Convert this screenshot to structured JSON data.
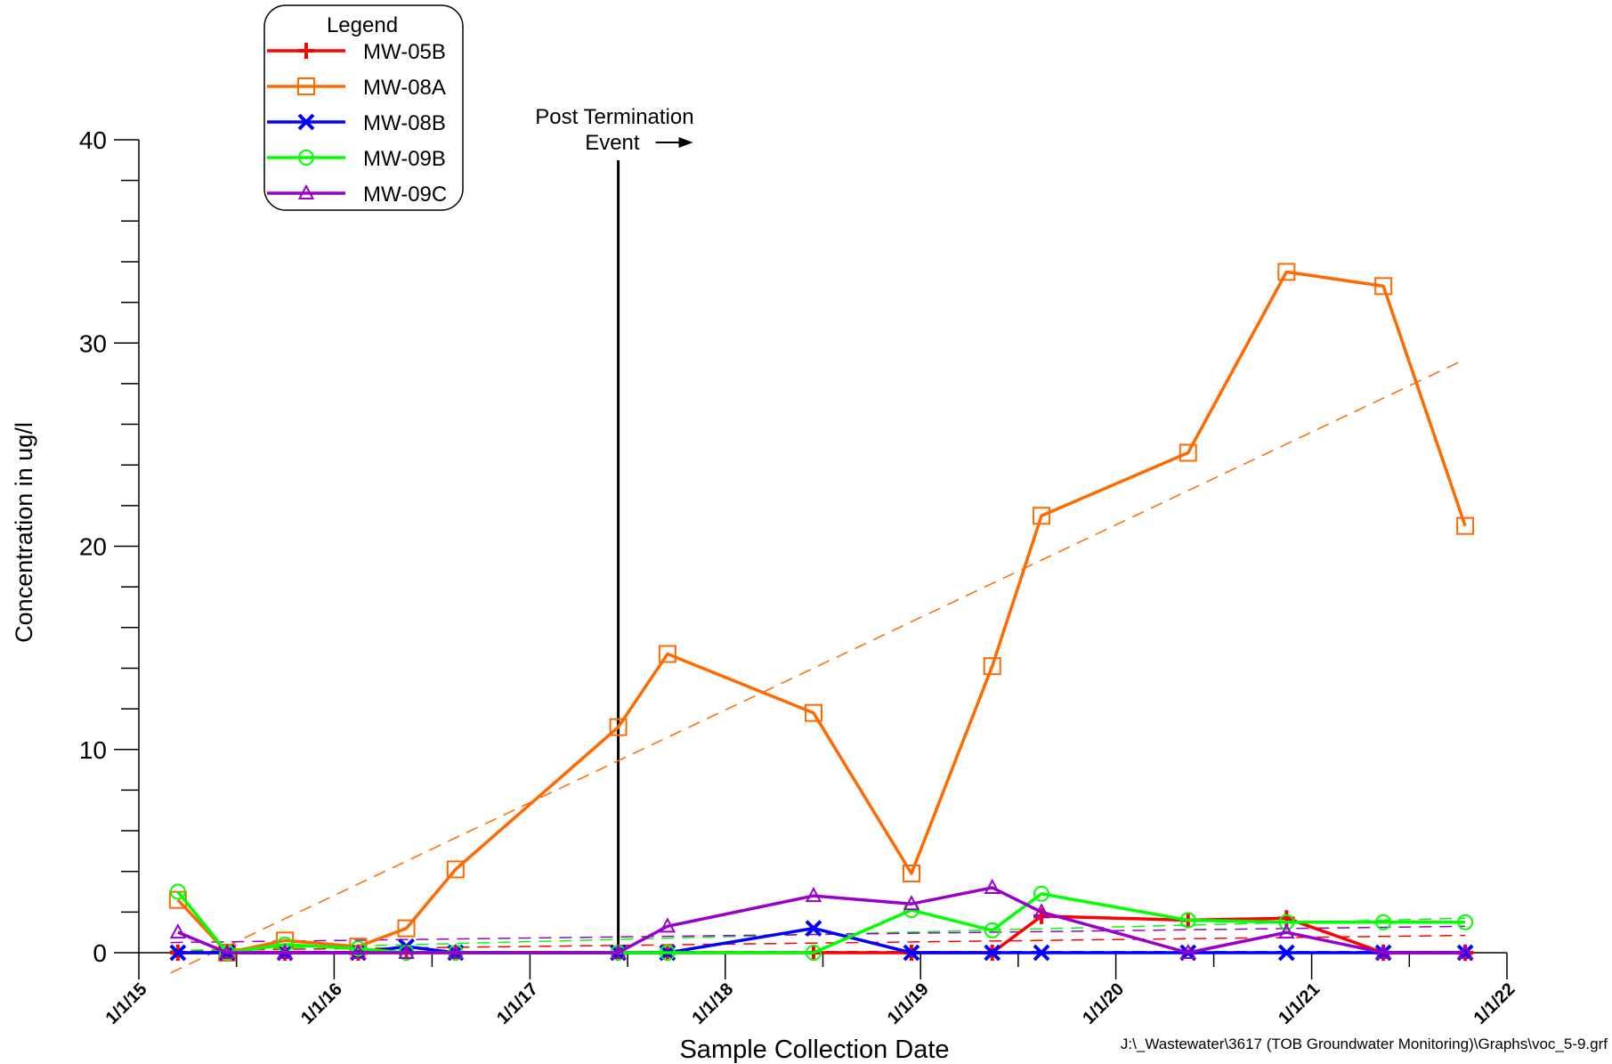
{
  "chart_data": {
    "type": "line",
    "title": "",
    "xlabel": "Sample Collection Date",
    "ylabel": "Concentration in ug/l",
    "x_axis_type": "date",
    "xlim": [
      "2015-01-01",
      "2022-01-01"
    ],
    "ylim": [
      0,
      40
    ],
    "x_ticks": [
      "1/1/15",
      "1/1/16",
      "1/1/17",
      "1/1/18",
      "1/1/19",
      "1/1/20",
      "1/1/21",
      "1/1/22"
    ],
    "y_ticks": [
      "0",
      "10",
      "20",
      "30",
      "40"
    ],
    "grid": false,
    "legend_title": "Legend",
    "legend_position": "top-left",
    "annotation": {
      "line1": "Post Termination",
      "line2": "Event",
      "date": "2017-06-15"
    },
    "footer": "J:\\_Wastewater\\3617 (TOB Groundwater Monitoring)\\Graphs\\voc_5-9.grf",
    "series": [
      {
        "name": "MW-05B",
        "color": "#ff0000",
        "marker": "plus",
        "x": [
          "2015-03-15",
          "2015-06-15",
          "2015-10-01",
          "2016-02-15",
          "2016-05-15",
          "2016-08-15",
          "2017-06-15",
          "2017-09-15",
          "2018-06-15",
          "2018-12-15",
          "2019-05-15",
          "2019-08-15",
          "2020-05-15",
          "2020-11-15",
          "2021-05-15",
          "2021-10-15"
        ],
        "y": [
          0,
          0,
          0,
          0,
          0,
          0,
          0,
          0,
          0,
          0,
          0,
          1.8,
          1.6,
          1.7,
          0,
          0
        ],
        "trend": [
          0.1,
          0.85
        ]
      },
      {
        "name": "MW-08A",
        "color": "#ff6a00",
        "marker": "square",
        "x": [
          "2015-03-15",
          "2015-06-15",
          "2015-10-01",
          "2016-02-15",
          "2016-05-15",
          "2016-08-15",
          "2017-06-15",
          "2017-09-15",
          "2018-06-15",
          "2018-12-15",
          "2019-05-15",
          "2019-08-15",
          "2020-05-15",
          "2020-11-15",
          "2021-05-15",
          "2021-10-15"
        ],
        "y": [
          2.6,
          0,
          0.6,
          0.3,
          1.2,
          4.1,
          11.1,
          14.7,
          11.8,
          3.9,
          14.1,
          21.5,
          24.6,
          33.5,
          32.8,
          21.0
        ],
        "trend": [
          -1.0,
          29.2
        ]
      },
      {
        "name": "MW-08B",
        "color": "#0000ff",
        "marker": "x",
        "x": [
          "2015-03-15",
          "2015-06-15",
          "2015-10-01",
          "2016-02-15",
          "2016-05-15",
          "2016-08-15",
          "2017-06-15",
          "2017-09-15",
          "2018-06-15",
          "2018-12-15",
          "2019-05-15",
          "2019-08-15",
          "2020-05-15",
          "2020-11-15",
          "2021-05-15",
          "2021-10-15"
        ],
        "y": [
          0,
          0,
          0,
          0,
          0.3,
          0,
          0,
          0,
          1.2,
          0,
          0,
          0,
          0,
          0,
          0,
          0
        ],
        "trend": [
          0.05,
          0.05
        ]
      },
      {
        "name": "MW-09B",
        "color": "#00ff00",
        "marker": "circle",
        "x": [
          "2015-03-15",
          "2015-06-15",
          "2015-10-01",
          "2016-02-15",
          "2016-05-15",
          "2016-08-15",
          "2017-06-15",
          "2017-09-15",
          "2018-06-15",
          "2018-12-15",
          "2019-05-15",
          "2019-08-15",
          "2020-05-15",
          "2020-11-15",
          "2021-05-15",
          "2021-10-15"
        ],
        "y": [
          3.0,
          0,
          0.4,
          0.2,
          0,
          0,
          0,
          0,
          0,
          2.1,
          1.1,
          2.9,
          1.6,
          1.5,
          1.5,
          1.5
        ],
        "trend": [
          0.1,
          1.7
        ]
      },
      {
        "name": "MW-09C",
        "color": "#9900cc",
        "marker": "triangle",
        "x": [
          "2015-03-15",
          "2015-06-15",
          "2015-10-01",
          "2016-02-15",
          "2016-05-15",
          "2016-08-15",
          "2017-06-15",
          "2017-09-15",
          "2018-06-15",
          "2018-12-15",
          "2019-05-15",
          "2019-08-15",
          "2020-05-15",
          "2020-11-15",
          "2021-05-15",
          "2021-10-15"
        ],
        "y": [
          1.0,
          0,
          0,
          0,
          0,
          0,
          0,
          1.3,
          2.8,
          2.4,
          3.2,
          2.0,
          0,
          1.0,
          0,
          0
        ],
        "trend": [
          0.5,
          1.3
        ]
      }
    ]
  }
}
